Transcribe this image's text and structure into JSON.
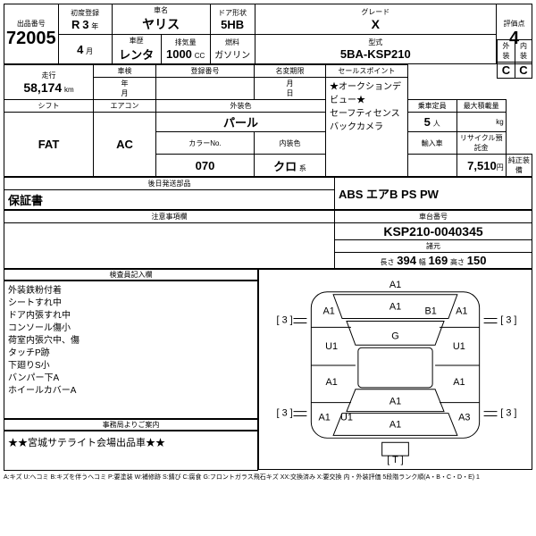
{
  "header": {
    "lot_lbl": "出品番号",
    "lot_no": "72005",
    "first_reg_lbl": "初度登録",
    "first_reg_era": "R",
    "first_reg_year": "3",
    "first_reg_year_suf": "年",
    "first_reg_month": "4",
    "first_reg_month_suf": "月",
    "history_lbl": "車歴",
    "history": "レンタ",
    "name_lbl": "車名",
    "name": "ヤリス",
    "disp_lbl": "排気量",
    "disp": "1000",
    "disp_unit": "CC",
    "door_lbl": "ドア形状",
    "door": "5HB",
    "fuel_lbl": "燃料",
    "fuel": "ガソリン",
    "grade_lbl": "グレード",
    "grade": "X",
    "model_lbl": "型式",
    "model": "5BA-KSP210",
    "score_lbl": "評価点",
    "score": "4",
    "ext_lbl": "外装",
    "ext": "C",
    "int_lbl": "内装",
    "int": "C"
  },
  "row2": {
    "mileage_lbl": "走行",
    "mileage": "58,174",
    "mileage_unit": "km",
    "inspect_lbl": "車検",
    "inspect_year": "年",
    "inspect_month": "月",
    "reg_no_lbl": "登録番号",
    "expiry_lbl": "名変期限",
    "expiry_month": "月",
    "expiry_day": "日",
    "sales_lbl": "セールスポイント",
    "sales_1": "★オークションデビュー★",
    "sales_2": "セーフティセンス",
    "sales_3": "バックカメラ"
  },
  "row3": {
    "shift_lbl": "シフト",
    "shift": "FAT",
    "ac_lbl": "エアコン",
    "ac": "AC",
    "ext_color_lbl": "外装色",
    "ext_color": "パール",
    "color_no_lbl": "カラーNo.",
    "color_no": "070",
    "int_color_lbl": "内装色",
    "int_color": "クロ",
    "int_color_suf": "系",
    "capacity_lbl": "乗車定員",
    "capacity": "5",
    "capacity_unit": "人",
    "weight_lbl": "最大積載量",
    "weight_unit": "kg",
    "import_lbl": "輸入車",
    "recycle_lbl": "リサイクル預託金",
    "recycle": "7,510",
    "recycle_unit": "円"
  },
  "row4": {
    "parts_lbl": "後日発送部品",
    "parts": "保証書",
    "equip_lbl": "純正装備",
    "equip": "ABS エアB PS PW"
  },
  "row5": {
    "notice_lbl": "注意事項欄",
    "chassis_lbl": "車台番号",
    "chassis": "KSP210-0040345",
    "dims_lbl": "諸元",
    "len_lbl": "長さ",
    "len": "394",
    "wid_lbl": "幅",
    "wid": "169",
    "hgt_lbl": "高さ",
    "hgt": "150"
  },
  "inspection": {
    "lbl": "検査員記入欄",
    "notes": [
      "外装鉄粉付着",
      "シートすれ中",
      "ドア内張すれ中",
      "コンソール傷小",
      "荷室内張穴中、傷",
      "タッチP跡",
      "下廻りS小",
      "バンパー下A",
      "ホイールカバーA"
    ]
  },
  "diagram": {
    "marks": {
      "front_bumper": "A1",
      "hood": "A1",
      "windshield": "G",
      "roof": "B1",
      "fl_fender": "A1",
      "fr_fender": "A1",
      "fl_door": "U1",
      "fr_door": "U1",
      "rl_door": "A1",
      "rr_door": "A1",
      "rl_fender": "A1",
      "rr_fender": "A3",
      "rl_inner": "U1",
      "rear": "A1",
      "trunk": "A1",
      "fl_wheel": "[ 3 ]",
      "fr_wheel": "[ 3 ]",
      "rl_wheel": "[ 3 ]",
      "rr_wheel": "[ 3 ]",
      "spare": "[ T ]"
    }
  },
  "footer": {
    "office_lbl": "事務局よりご案内",
    "office": "★★宮城サテライト会場出品車★★",
    "legend": "A:キズ U:ヘコミ B:キズを伴うヘコミ P:要塗装 W:補修跡 S:錆び C:腐食 G:フロントガラス飛石キズ XX:交換済み X:要交換 内・外装評価 5段階ランク順(A・B・C・D・E) 1"
  }
}
